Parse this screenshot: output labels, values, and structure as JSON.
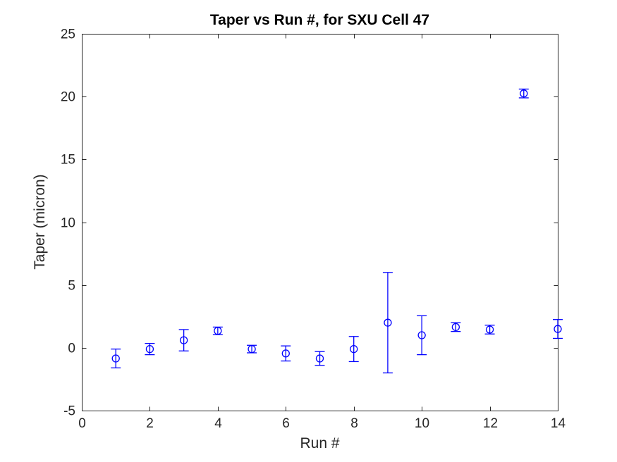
{
  "figure": {
    "background": "#ffffff"
  },
  "chart_data": {
    "type": "scatter",
    "title": "Taper vs Run #, for SXU Cell 47",
    "xlabel": "Run #",
    "ylabel": "Taper (micron)",
    "xlim": [
      0,
      14
    ],
    "ylim": [
      -5,
      25
    ],
    "xticks": [
      0,
      2,
      4,
      6,
      8,
      10,
      12,
      14
    ],
    "yticks": [
      -5,
      0,
      5,
      10,
      15,
      20,
      25
    ],
    "grid": false,
    "legend": false,
    "marker": "open-circle",
    "error_bars": "vertical",
    "series": [
      {
        "name": "Taper",
        "color": "#0000ff",
        "x": [
          1,
          2,
          3,
          4,
          5,
          6,
          7,
          8,
          9,
          10,
          11,
          12,
          13,
          14
        ],
        "y": [
          -0.85,
          -0.1,
          0.6,
          1.35,
          -0.1,
          -0.45,
          -0.85,
          -0.1,
          2.0,
          1.0,
          1.65,
          1.45,
          20.25,
          1.5
        ],
        "yerr": [
          0.75,
          0.45,
          0.85,
          0.3,
          0.3,
          0.6,
          0.55,
          1.0,
          4.0,
          1.55,
          0.35,
          0.35,
          0.35,
          0.75
        ]
      }
    ],
    "axis_color": "#262626",
    "tick_label_color": "#262626",
    "title_color": "#000000"
  }
}
